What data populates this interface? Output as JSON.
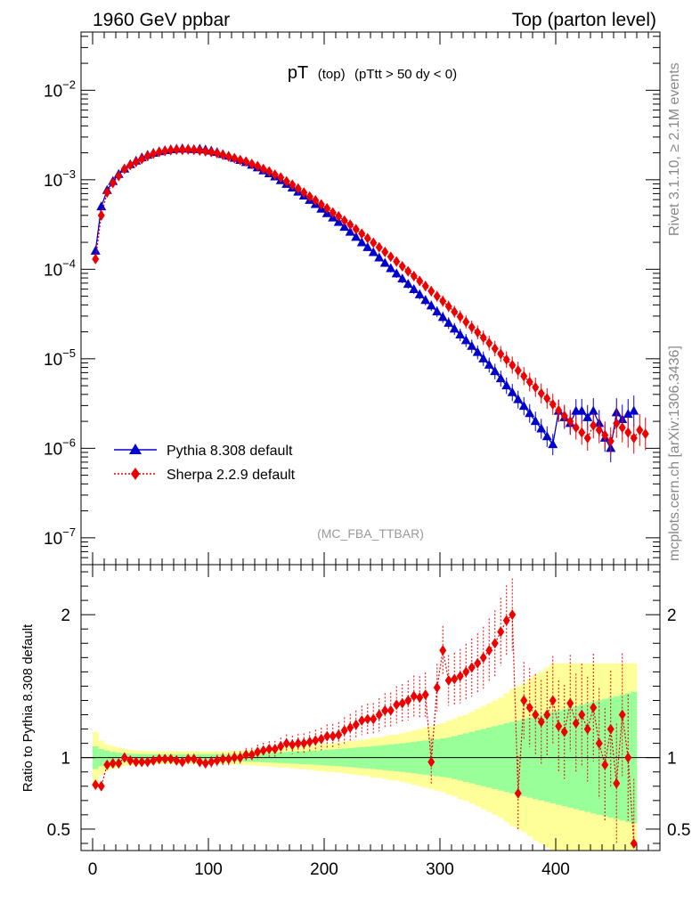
{
  "header": {
    "left": "1960 GeV ppbar",
    "right": "Top (parton level)"
  },
  "side_labels": {
    "rivet": "Rivet 3.1.10, ≥ 2.1M events",
    "mcplots": "mcplots.cern.ch [arXiv:1306.3436]"
  },
  "chart_data": [
    {
      "type": "line",
      "title_main": "pT",
      "title_small": "(top)",
      "title_cut": "(pTtt > 50 dy < 0)",
      "watermark": "(MC_FBA_TTBAR)",
      "yscale": "log",
      "xlim": [
        -10,
        490
      ],
      "ylim_decades": [
        -7.3,
        -1.35
      ],
      "y_tick_labels": [
        {
          "exp": -2,
          "label": "10",
          "sup": "−2"
        },
        {
          "exp": -3,
          "label": "10",
          "sup": "−3"
        },
        {
          "exp": -4,
          "label": "10",
          "sup": "−4"
        },
        {
          "exp": -5,
          "label": "10",
          "sup": "−5"
        },
        {
          "exp": -6,
          "label": "10",
          "sup": "−6"
        },
        {
          "exp": -7,
          "label": "10",
          "sup": "−7"
        }
      ],
      "legend": [
        {
          "name": "Pythia 8.308 default",
          "color": "#0000cc",
          "marker": "triangle",
          "line": "solid"
        },
        {
          "name": "Sherpa 2.2.9 default",
          "color": "#ee0000",
          "marker": "diamond",
          "line": "dotted"
        }
      ],
      "series": [
        {
          "name": "Pythia 8.308 default",
          "x": [
            2.5,
            7.5,
            12.5,
            17.5,
            22.5,
            27.5,
            32.5,
            37.5,
            42.5,
            47.5,
            52.5,
            57.5,
            62.5,
            67.5,
            72.5,
            77.5,
            82.5,
            87.5,
            92.5,
            97.5,
            102.5,
            107.5,
            112.5,
            117.5,
            122.5,
            127.5,
            132.5,
            137.5,
            142.5,
            147.5,
            152.5,
            157.5,
            162.5,
            167.5,
            172.5,
            177.5,
            182.5,
            187.5,
            192.5,
            197.5,
            202.5,
            207.5,
            212.5,
            217.5,
            222.5,
            227.5,
            232.5,
            237.5,
            242.5,
            247.5,
            252.5,
            257.5,
            262.5,
            267.5,
            272.5,
            277.5,
            282.5,
            287.5,
            292.5,
            297.5,
            302.5,
            307.5,
            312.5,
            317.5,
            322.5,
            327.5,
            332.5,
            337.5,
            342.5,
            347.5,
            352.5,
            357.5,
            362.5,
            367.5,
            372.5,
            377.5,
            382.5,
            387.5,
            392.5,
            397.5,
            402.5,
            407.5,
            412.5,
            417.5,
            422.5,
            427.5,
            432.5,
            437.5,
            442.5,
            447.5,
            452.5,
            457.5,
            462.5,
            467.5
          ],
          "y": [
            0.00016,
            0.0005,
            0.00076,
            0.00096,
            0.00115,
            0.00132,
            0.00148,
            0.00162,
            0.00176,
            0.00188,
            0.00198,
            0.00206,
            0.00212,
            0.00217,
            0.0022,
            0.00222,
            0.0022,
            0.00218,
            0.0022,
            0.00216,
            0.0021,
            0.00202,
            0.00192,
            0.00184,
            0.00174,
            0.00165,
            0.00156,
            0.00146,
            0.00136,
            0.00126,
            0.00117,
            0.00108,
            0.00098,
            0.00089,
            0.00081,
            0.00073,
            0.00066,
            0.00059,
            0.00053,
            0.00047,
            0.00042,
            0.000375,
            0.000335,
            0.000295,
            0.00026,
            0.000228,
            0.000198,
            0.000175,
            0.000154,
            0.000134,
            0.000117,
            0.000102,
            8.9e-05,
            7.8e-05,
            6.8e-05,
            5.95e-05,
            5.2e-05,
            4.5e-05,
            3.9e-05,
            3.35e-05,
            2.9e-05,
            2.5e-05,
            2.15e-05,
            1.85e-05,
            1.6e-05,
            1.38e-05,
            1.18e-05,
            1e-05,
            8.5e-06,
            7.2e-06,
            6e-06,
            5e-06,
            4.2e-06,
            3.5e-06,
            2.95e-06,
            2.45e-06,
            2e-06,
            1.65e-06,
            1.35e-06,
            1.1e-06,
            2.6e-06,
            2.2e-06,
            1.9e-06,
            2.6e-06,
            2.6e-06,
            2.2e-06,
            2.6e-06,
            1.9e-06,
            1.3e-06,
            1e-06,
            2.5e-06,
            2.1e-06,
            2.4e-06,
            2.6e-06
          ]
        },
        {
          "name": "Sherpa 2.2.9 default",
          "x": [
            2.5,
            7.5,
            12.5,
            17.5,
            22.5,
            27.5,
            32.5,
            37.5,
            42.5,
            47.5,
            52.5,
            57.5,
            62.5,
            67.5,
            72.5,
            77.5,
            82.5,
            87.5,
            92.5,
            97.5,
            102.5,
            107.5,
            112.5,
            117.5,
            122.5,
            127.5,
            132.5,
            137.5,
            142.5,
            147.5,
            152.5,
            157.5,
            162.5,
            167.5,
            172.5,
            177.5,
            182.5,
            187.5,
            192.5,
            197.5,
            202.5,
            207.5,
            212.5,
            217.5,
            222.5,
            227.5,
            232.5,
            237.5,
            242.5,
            247.5,
            252.5,
            257.5,
            262.5,
            267.5,
            272.5,
            277.5,
            282.5,
            287.5,
            292.5,
            297.5,
            302.5,
            307.5,
            312.5,
            317.5,
            322.5,
            327.5,
            332.5,
            337.5,
            342.5,
            347.5,
            352.5,
            357.5,
            362.5,
            367.5,
            372.5,
            377.5,
            382.5,
            387.5,
            392.5,
            397.5,
            402.5,
            407.5,
            412.5,
            417.5,
            422.5,
            427.5,
            432.5,
            437.5,
            442.5,
            447.5,
            452.5,
            457.5,
            462.5,
            467.5,
            472.5,
            477.5
          ],
          "y": [
            0.00013,
            0.0004,
            0.00072,
            0.00092,
            0.0011,
            0.00132,
            0.00146,
            0.00158,
            0.0017,
            0.00184,
            0.00196,
            0.00204,
            0.0021,
            0.00214,
            0.00217,
            0.00216,
            0.00218,
            0.00216,
            0.00212,
            0.00208,
            0.00204,
            0.00198,
            0.0019,
            0.00182,
            0.00174,
            0.00166,
            0.0016,
            0.0015,
            0.00142,
            0.00132,
            0.00124,
            0.00114,
            0.00106,
            0.00096,
            0.00088,
            0.0008,
            0.00072,
            0.00065,
            0.00059,
            0.00053,
            0.00048,
            0.00043,
            0.00039,
            0.00035,
            0.000315,
            0.00028,
            0.00025,
            0.000222,
            0.000198,
            0.000176,
            0.000156,
            0.000138,
            0.000122,
            0.000108,
            9.5e-05,
            8.4e-05,
            7.4e-05,
            6.5e-05,
            5.7e-05,
            5e-05,
            4.4e-05,
            3.85e-05,
            3.35e-05,
            2.95e-05,
            2.58e-05,
            2.25e-05,
            1.97e-05,
            1.72e-05,
            1.5e-05,
            1.3e-05,
            1.13e-05,
            9.8e-06,
            8.5e-06,
            7.4e-06,
            6.4e-06,
            5.5e-06,
            4.8e-06,
            4.1e-06,
            3.6e-06,
            3.1e-06,
            2.65e-06,
            2.3e-06,
            2e-06,
            1.7e-06,
            1.5e-06,
            1.3e-06,
            1.8e-06,
            1.6e-06,
            1.4e-06,
            1.2e-06,
            1.9e-06,
            1.7e-06,
            1.5e-06,
            1.3e-06,
            1.6e-06,
            1.45e-06
          ]
        }
      ]
    },
    {
      "type": "line",
      "ylabel": "Ratio to Pythia 8.308 default",
      "xlim": [
        -10,
        490
      ],
      "ylim": [
        0.35,
        2.35
      ],
      "x_ticks": [
        0,
        100,
        200,
        300,
        400
      ],
      "y_ticks": [
        0.5,
        1,
        2
      ],
      "y_tick_labels": [
        "0.5",
        "1",
        "2"
      ],
      "series": [
        {
          "name": "Sherpa 2.2.9 default",
          "x": [
            2.5,
            7.5,
            12.5,
            17.5,
            22.5,
            27.5,
            32.5,
            37.5,
            42.5,
            47.5,
            52.5,
            57.5,
            62.5,
            67.5,
            72.5,
            77.5,
            82.5,
            87.5,
            92.5,
            97.5,
            102.5,
            107.5,
            112.5,
            117.5,
            122.5,
            127.5,
            132.5,
            137.5,
            142.5,
            147.5,
            152.5,
            157.5,
            162.5,
            167.5,
            172.5,
            177.5,
            182.5,
            187.5,
            192.5,
            197.5,
            202.5,
            207.5,
            212.5,
            217.5,
            222.5,
            227.5,
            232.5,
            237.5,
            242.5,
            247.5,
            252.5,
            257.5,
            262.5,
            267.5,
            272.5,
            277.5,
            282.5,
            287.5,
            292.5,
            297.5,
            302.5,
            307.5,
            312.5,
            317.5,
            322.5,
            327.5,
            332.5,
            337.5,
            342.5,
            347.5,
            352.5,
            357.5,
            362.5,
            367.5,
            372.5,
            377.5,
            382.5,
            387.5,
            392.5,
            397.5,
            402.5,
            407.5,
            412.5,
            417.5,
            422.5,
            427.5,
            432.5,
            437.5,
            442.5,
            447.5,
            452.5,
            457.5,
            462.5,
            467.5
          ],
          "y": [
            0.81,
            0.8,
            0.95,
            0.96,
            0.96,
            1.0,
            0.98,
            0.97,
            0.97,
            0.97,
            0.98,
            0.99,
            0.99,
            0.99,
            0.98,
            0.97,
            0.99,
            0.99,
            0.97,
            0.96,
            0.97,
            0.98,
            0.99,
            0.99,
            1.0,
            1.0,
            1.02,
            1.02,
            1.04,
            1.05,
            1.06,
            1.06,
            1.08,
            1.1,
            1.09,
            1.1,
            1.1,
            1.11,
            1.12,
            1.13,
            1.15,
            1.15,
            1.16,
            1.19,
            1.21,
            1.23,
            1.26,
            1.27,
            1.27,
            1.3,
            1.33,
            1.33,
            1.37,
            1.38,
            1.4,
            1.43,
            1.42,
            1.44,
            0.97,
            1.49,
            1.75,
            1.54,
            1.55,
            1.57,
            1.6,
            1.63,
            1.66,
            1.7,
            1.75,
            1.8,
            1.88,
            1.96,
            2.0,
            0.75,
            1.4,
            1.35,
            1.3,
            1.25,
            1.3,
            1.4,
            1.22,
            1.18,
            1.38,
            1.24,
            1.3,
            1.2,
            1.35,
            1.1,
            0.95,
            1.2,
            0.82,
            1.3,
            1.0,
            0.4
          ],
          "color": "#ee0000"
        }
      ],
      "bands": {
        "outer_color": "#ffff99",
        "inner_color": "#99ff99",
        "x_edges": [
          0,
          5,
          10,
          15,
          20,
          25,
          30,
          35,
          40,
          45,
          50,
          55,
          60,
          65,
          70,
          75,
          80,
          85,
          90,
          95,
          100,
          105,
          110,
          115,
          120,
          125,
          130,
          135,
          140,
          145,
          150,
          155,
          160,
          165,
          170,
          175,
          180,
          185,
          190,
          195,
          200,
          205,
          210,
          215,
          220,
          225,
          230,
          235,
          240,
          245,
          250,
          255,
          260,
          265,
          270,
          275,
          280,
          285,
          290,
          295,
          300,
          305,
          310,
          315,
          320,
          325,
          330,
          335,
          340,
          345,
          350,
          355,
          360,
          365,
          370,
          375,
          380,
          385,
          390,
          395,
          400,
          405,
          410,
          415,
          420,
          425,
          430,
          435,
          440,
          445,
          450,
          455,
          460,
          465,
          470
        ],
        "outer_half": [
          0.18,
          0.12,
          0.09,
          0.08,
          0.07,
          0.06,
          0.055,
          0.05,
          0.05,
          0.045,
          0.045,
          0.045,
          0.045,
          0.045,
          0.045,
          0.045,
          0.045,
          0.045,
          0.045,
          0.045,
          0.045,
          0.045,
          0.045,
          0.045,
          0.05,
          0.05,
          0.05,
          0.055,
          0.055,
          0.06,
          0.06,
          0.065,
          0.07,
          0.07,
          0.075,
          0.08,
          0.08,
          0.085,
          0.09,
          0.095,
          0.1,
          0.1,
          0.105,
          0.11,
          0.115,
          0.12,
          0.125,
          0.13,
          0.14,
          0.14,
          0.15,
          0.16,
          0.16,
          0.17,
          0.18,
          0.19,
          0.2,
          0.21,
          0.22,
          0.23,
          0.24,
          0.26,
          0.27,
          0.29,
          0.3,
          0.32,
          0.34,
          0.36,
          0.38,
          0.4,
          0.42,
          0.45,
          0.48,
          0.5,
          0.52,
          0.55,
          0.58,
          0.6,
          0.63,
          0.66,
          0.66,
          0.66,
          0.66,
          0.66,
          0.66,
          0.66,
          0.66,
          0.66,
          0.66,
          0.66,
          0.66,
          0.66,
          0.66,
          0.66
        ],
        "inner_half": [
          0.08,
          0.06,
          0.05,
          0.04,
          0.035,
          0.03,
          0.028,
          0.026,
          0.025,
          0.024,
          0.024,
          0.024,
          0.024,
          0.024,
          0.024,
          0.024,
          0.024,
          0.024,
          0.024,
          0.024,
          0.024,
          0.025,
          0.025,
          0.025,
          0.026,
          0.027,
          0.028,
          0.029,
          0.03,
          0.032,
          0.034,
          0.036,
          0.038,
          0.04,
          0.042,
          0.044,
          0.046,
          0.048,
          0.05,
          0.052,
          0.055,
          0.058,
          0.06,
          0.063,
          0.066,
          0.07,
          0.073,
          0.076,
          0.08,
          0.084,
          0.088,
          0.092,
          0.096,
          0.1,
          0.105,
          0.11,
          0.115,
          0.12,
          0.125,
          0.13,
          0.135,
          0.14,
          0.15,
          0.16,
          0.17,
          0.18,
          0.19,
          0.2,
          0.21,
          0.22,
          0.23,
          0.24,
          0.25,
          0.26,
          0.27,
          0.28,
          0.29,
          0.3,
          0.31,
          0.32,
          0.33,
          0.34,
          0.35,
          0.36,
          0.37,
          0.38,
          0.39,
          0.4,
          0.41,
          0.42,
          0.43,
          0.44,
          0.45,
          0.46
        ]
      }
    }
  ]
}
